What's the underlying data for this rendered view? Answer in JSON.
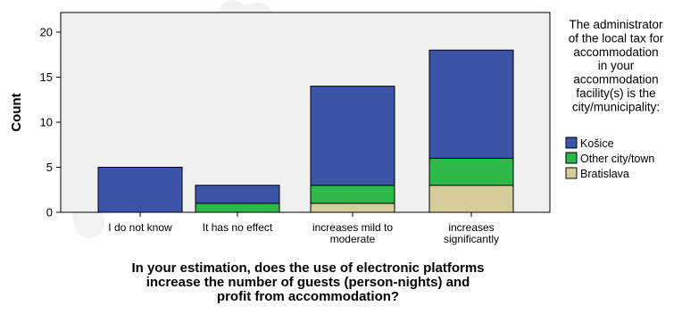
{
  "chart_data": {
    "type": "bar",
    "stacked": true,
    "categories": [
      "I do not know",
      "It has no effect",
      "increases mild to moderate",
      "increases significantly"
    ],
    "category_lines": [
      [
        "I do not know"
      ],
      [
        "It has no effect"
      ],
      [
        "increases mild to",
        "moderate"
      ],
      [
        "increases",
        "significantly"
      ]
    ],
    "series": [
      {
        "name": "Bratislava",
        "color": "#d6cd9b",
        "values": [
          0,
          0,
          1,
          3
        ]
      },
      {
        "name": "Other city/town",
        "color": "#2db84a",
        "values": [
          0,
          1,
          2,
          3
        ]
      },
      {
        "name": "Košice",
        "color": "#3c54a8",
        "values": [
          5,
          2,
          11,
          12
        ]
      }
    ],
    "legend_order": [
      "Košice",
      "Other city/town",
      "Bratislava"
    ],
    "legend_title_lines": [
      "The administrator",
      "of the local tax for",
      "accommodation",
      "in your",
      "accommodation",
      "facility(s) is the",
      "city/municipality:"
    ],
    "ylabel": "Count",
    "xlabel_lines": [
      "In your estimation, does the use of electronic platforms",
      "increase the number of guests (person-nights) and",
      "profit from accommodation?"
    ],
    "ylim": [
      0,
      21
    ],
    "yticks": [
      0,
      5,
      10,
      15,
      20
    ],
    "grid": false,
    "legend_position": "right",
    "plot_background": "#f0f0f0"
  }
}
